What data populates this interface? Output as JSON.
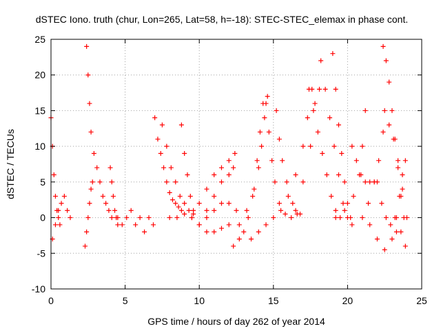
{
  "chart_data": {
    "type": "scatter",
    "title": "dSTEC Iono. truth (chur, Lon=265, Lat=58, h=-18): STEC-STEC_elemax in phase cont.",
    "xlabel": "GPS time / hours of day 262 of year 2014",
    "ylabel": "dSTEC  / TECUs",
    "xlim": [
      0,
      25
    ],
    "ylim": [
      -10,
      25
    ],
    "xticks": [
      "0",
      "5",
      "10",
      "15",
      "20",
      "25"
    ],
    "yticks": [
      "-10",
      "-5",
      "0",
      "5",
      "10",
      "15",
      "20",
      "25"
    ],
    "grid": true,
    "marker": "+",
    "color": "#ff0000",
    "series": [
      {
        "points": [
          [
            0,
            14
          ],
          [
            0.1,
            10
          ],
          [
            0.2,
            6
          ],
          [
            0.3,
            3
          ],
          [
            0.4,
            1
          ],
          [
            0.5,
            0
          ],
          [
            0.6,
            -1
          ]
        ]
      },
      {
        "points": [
          [
            0.1,
            -3
          ],
          [
            0.3,
            -1
          ],
          [
            0.5,
            1
          ],
          [
            0.7,
            2
          ],
          [
            0.9,
            3
          ],
          [
            1.1,
            1
          ],
          [
            1.3,
            0
          ]
        ]
      },
      {
        "points": [
          [
            2.3,
            -4
          ],
          [
            2.4,
            -2
          ],
          [
            2.5,
            0
          ],
          [
            2.6,
            2
          ],
          [
            2.7,
            4
          ],
          [
            2.8,
            5
          ]
        ]
      },
      {
        "points": [
          [
            2.4,
            24
          ],
          [
            2.5,
            20
          ],
          [
            2.6,
            16
          ],
          [
            2.7,
            12
          ],
          [
            2.9,
            9
          ],
          [
            3.1,
            7
          ],
          [
            3.3,
            5
          ],
          [
            3.5,
            3
          ],
          [
            3.7,
            2
          ],
          [
            3.9,
            1
          ],
          [
            4.1,
            0
          ]
        ]
      },
      {
        "points": [
          [
            4.0,
            7
          ],
          [
            4.1,
            5
          ],
          [
            4.2,
            3
          ],
          [
            4.3,
            1
          ],
          [
            4.4,
            0
          ],
          [
            4.5,
            -1
          ]
        ]
      },
      {
        "points": [
          [
            4.5,
            0
          ],
          [
            4.8,
            -1
          ],
          [
            5.1,
            0
          ],
          [
            5.4,
            1
          ],
          [
            5.7,
            -1
          ],
          [
            6.0,
            0
          ],
          [
            6.3,
            -2
          ],
          [
            6.6,
            0
          ],
          [
            6.9,
            -1
          ]
        ]
      },
      {
        "points": [
          [
            7.0,
            14
          ],
          [
            7.2,
            11
          ],
          [
            7.4,
            9
          ],
          [
            7.6,
            7
          ],
          [
            7.8,
            5
          ],
          [
            8.0,
            3.5
          ],
          [
            8.2,
            2.5
          ],
          [
            8.4,
            2
          ],
          [
            8.6,
            1.5
          ],
          [
            8.8,
            1
          ]
        ]
      },
      {
        "points": [
          [
            7.5,
            13
          ],
          [
            7.8,
            10
          ],
          [
            8.1,
            7
          ],
          [
            8.4,
            5
          ],
          [
            8.7,
            3
          ],
          [
            9.0,
            2
          ],
          [
            9.3,
            1
          ],
          [
            9.6,
            0.5
          ]
        ]
      },
      {
        "points": [
          [
            8.8,
            13
          ],
          [
            9.0,
            9
          ],
          [
            9.2,
            6
          ],
          [
            9.4,
            3
          ],
          [
            9.6,
            1
          ]
        ]
      },
      {
        "points": [
          [
            8.0,
            0
          ],
          [
            8.5,
            0
          ],
          [
            9.0,
            0.5
          ],
          [
            9.5,
            0
          ],
          [
            10.0,
            -1
          ],
          [
            10.5,
            -2
          ],
          [
            11.0,
            -2
          ],
          [
            11.5,
            -1.5
          ],
          [
            12.0,
            -1
          ]
        ]
      },
      {
        "points": [
          [
            9.5,
            0
          ],
          [
            10.0,
            2
          ],
          [
            10.5,
            4
          ],
          [
            11.0,
            6
          ],
          [
            11.5,
            7
          ],
          [
            12.0,
            8
          ],
          [
            12.4,
            9
          ]
        ]
      },
      {
        "points": [
          [
            10.0,
            -1
          ],
          [
            10.5,
            1
          ],
          [
            11.0,
            3
          ],
          [
            11.5,
            5
          ],
          [
            12.0,
            6
          ],
          [
            12.3,
            7
          ]
        ]
      },
      {
        "points": [
          [
            10.5,
            0
          ],
          [
            11.0,
            1
          ],
          [
            11.5,
            2
          ],
          [
            12.0,
            2
          ],
          [
            12.5,
            1
          ]
        ]
      },
      {
        "points": [
          [
            12.3,
            -4
          ],
          [
            12.7,
            -3
          ],
          [
            13.0,
            -2
          ],
          [
            13.3,
            0
          ],
          [
            13.6,
            3
          ],
          [
            13.9,
            8
          ],
          [
            14.1,
            12
          ],
          [
            14.3,
            16
          ]
        ]
      },
      {
        "points": [
          [
            12.7,
            -1
          ],
          [
            13.2,
            1
          ],
          [
            13.7,
            4
          ],
          [
            14.0,
            7
          ],
          [
            14.2,
            10
          ],
          [
            14.4,
            14
          ],
          [
            14.6,
            17
          ]
        ]
      },
      {
        "points": [
          [
            13.5,
            -3
          ],
          [
            14.0,
            -2
          ],
          [
            14.5,
            -1
          ],
          [
            15.0,
            0
          ],
          [
            15.5,
            1
          ],
          [
            16.0,
            3
          ],
          [
            16.5,
            6
          ],
          [
            17.0,
            10
          ],
          [
            17.3,
            14
          ],
          [
            17.6,
            18
          ]
        ]
      },
      {
        "points": [
          [
            14.5,
            16
          ],
          [
            14.7,
            12
          ],
          [
            14.9,
            8
          ],
          [
            15.1,
            5
          ],
          [
            15.4,
            2
          ],
          [
            15.8,
            0.5
          ],
          [
            16.2,
            0
          ],
          [
            16.6,
            0.5
          ]
        ]
      },
      {
        "points": [
          [
            15.2,
            15
          ],
          [
            15.4,
            11
          ],
          [
            15.6,
            8
          ],
          [
            15.9,
            5
          ],
          [
            16.3,
            2
          ],
          [
            16.8,
            0.5
          ]
        ]
      },
      {
        "points": [
          [
            16.5,
            1
          ],
          [
            17.0,
            5
          ],
          [
            17.5,
            10
          ],
          [
            17.8,
            16
          ],
          [
            18.1,
            18
          ]
        ]
      },
      {
        "points": [
          [
            17.4,
            18
          ],
          [
            17.7,
            15
          ],
          [
            18.0,
            12
          ],
          [
            18.3,
            9
          ],
          [
            18.6,
            6
          ],
          [
            18.9,
            3
          ],
          [
            19.2,
            1
          ],
          [
            19.5,
            0
          ]
        ]
      },
      {
        "points": [
          [
            18.2,
            22
          ],
          [
            18.5,
            18
          ],
          [
            18.8,
            14
          ],
          [
            19.1,
            10
          ],
          [
            19.4,
            6
          ],
          [
            19.7,
            2
          ],
          [
            20.0,
            0
          ],
          [
            20.3,
            -1
          ]
        ]
      },
      {
        "points": [
          [
            19.0,
            23
          ],
          [
            19.2,
            18
          ],
          [
            19.4,
            13
          ],
          [
            19.6,
            9
          ],
          [
            19.8,
            5
          ],
          [
            20.0,
            2
          ],
          [
            20.2,
            0
          ]
        ]
      },
      {
        "points": [
          [
            19.2,
            0
          ],
          [
            19.8,
            1
          ],
          [
            20.4,
            3
          ],
          [
            20.8,
            6
          ],
          [
            21.0,
            10
          ],
          [
            21.2,
            15
          ]
        ]
      },
      {
        "points": [
          [
            20.3,
            10
          ],
          [
            20.6,
            8
          ],
          [
            20.9,
            6
          ],
          [
            21.2,
            5
          ],
          [
            21.5,
            5
          ],
          [
            21.8,
            5
          ]
        ]
      },
      {
        "points": [
          [
            21.0,
            0
          ],
          [
            21.4,
            2
          ],
          [
            21.8,
            5
          ],
          [
            22.1,
            8
          ],
          [
            22.4,
            12
          ]
        ]
      },
      {
        "points": [
          [
            22.0,
            5
          ],
          [
            22.3,
            2
          ],
          [
            22.6,
            0
          ],
          [
            22.9,
            -1
          ],
          [
            23.2,
            0
          ]
        ]
      },
      {
        "points": [
          [
            22.4,
            24
          ],
          [
            22.6,
            22
          ],
          [
            22.8,
            19
          ],
          [
            23.0,
            15
          ],
          [
            23.2,
            11
          ],
          [
            23.4,
            7
          ],
          [
            23.6,
            3
          ],
          [
            23.8,
            0
          ]
        ]
      },
      {
        "points": [
          [
            22.5,
            15
          ],
          [
            22.8,
            13
          ],
          [
            23.1,
            11
          ],
          [
            23.4,
            8
          ],
          [
            23.7,
            4
          ],
          [
            24.0,
            0
          ]
        ]
      },
      {
        "points": [
          [
            21.5,
            -1
          ],
          [
            22.0,
            -3
          ],
          [
            22.5,
            -4.5
          ],
          [
            23.0,
            -3
          ],
          [
            23.3,
            -2
          ],
          [
            23.6,
            -2
          ],
          [
            23.9,
            -4
          ]
        ]
      },
      {
        "points": [
          [
            23.3,
            0
          ],
          [
            23.5,
            3
          ],
          [
            23.7,
            6
          ],
          [
            23.9,
            8
          ]
        ]
      }
    ]
  }
}
